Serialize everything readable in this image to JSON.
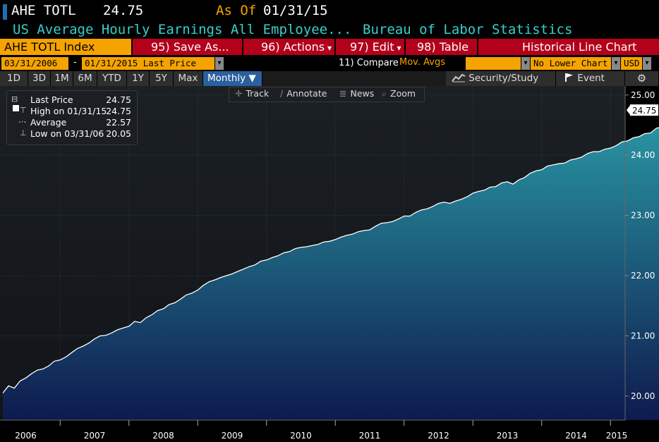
{
  "header": {
    "ticker": "AHE TOTL",
    "price": "24.75",
    "as_of_label": "As Of",
    "as_of_date": "01/31/15",
    "description": "US Average Hourly Earnings All Employee...",
    "source": "Bureau of Labor Statistics"
  },
  "menubar": {
    "index_label": "AHE TOTL Index",
    "save_as": "95) Save As...",
    "actions": "96) Actions",
    "edit": "97) Edit",
    "table": "98) Table",
    "chart_kind": "Historical Line Chart"
  },
  "daterow": {
    "start_date": "03/31/2006",
    "dash": "-",
    "end_date": "01/31/2015 Last Price",
    "compare": "11) Compare",
    "mov_avgs": "Mov. Avgs",
    "lower_chart": "No Lower Chart",
    "currency": "USD"
  },
  "periods": [
    "1D",
    "3D",
    "1M",
    "6M",
    "YTD",
    "1Y",
    "5Y",
    "Max"
  ],
  "frequency": "Monthly",
  "security_study": "Security/Study",
  "event": "Event",
  "tools": {
    "track": "Track",
    "annotate": "Annotate",
    "news": "News",
    "zoom": "Zoom"
  },
  "legend": {
    "last_price_label": "Last Price",
    "last_price_value": "24.75",
    "high_label": "High on 01/31/15",
    "high_value": "24.75",
    "average_label": "Average",
    "average_value": "22.57",
    "low_label": "Low on 03/31/06",
    "low_value": "20.05"
  },
  "colors": {
    "accent_orange": "#f5a300",
    "menu_red": "#b3001b",
    "title_cyan": "#38d0c8",
    "area_top": "#2a9aa6",
    "area_bottom": "#0e1a4e",
    "line": "#ffffff"
  },
  "chart_data": {
    "type": "area",
    "title": "",
    "xlabel": "",
    "ylabel": "",
    "x_start": "2006-03",
    "x_end": "2015-01",
    "ylim": [
      19.6,
      25.15
    ],
    "yticks": [
      "25.00",
      "24.00",
      "23.00",
      "22.00",
      "21.00",
      "20.00"
    ],
    "xticks": [
      "2006",
      "2007",
      "2008",
      "2009",
      "2010",
      "2011",
      "2012",
      "2013",
      "2014",
      "2015"
    ],
    "last_value_label": "24.75",
    "grid": true,
    "series": [
      {
        "values": [
          20.05,
          20.17,
          20.13,
          20.25,
          20.3,
          20.37,
          20.43,
          20.45,
          20.5,
          20.58,
          20.6,
          20.65,
          20.72,
          20.79,
          20.83,
          20.88,
          20.95,
          21.0,
          21.01,
          21.05,
          21.1,
          21.13,
          21.16,
          21.24,
          21.22,
          21.3,
          21.35,
          21.42,
          21.45,
          21.52,
          21.55,
          21.61,
          21.68,
          21.71,
          21.76,
          21.84,
          21.9,
          21.93,
          21.97,
          22.0,
          22.03,
          22.07,
          22.11,
          22.15,
          22.18,
          22.24,
          22.26,
          22.3,
          22.33,
          22.38,
          22.4,
          22.45,
          22.47,
          22.48,
          22.5,
          22.52,
          22.56,
          22.57,
          22.6,
          22.64,
          22.67,
          22.69,
          22.73,
          22.75,
          22.76,
          22.82,
          22.87,
          22.88,
          22.9,
          22.94,
          22.99,
          22.99,
          23.05,
          23.09,
          23.11,
          23.15,
          23.2,
          23.22,
          23.2,
          23.24,
          23.27,
          23.31,
          23.37,
          23.4,
          23.42,
          23.47,
          23.48,
          23.54,
          23.56,
          23.52,
          23.59,
          23.63,
          23.7,
          23.74,
          23.76,
          23.82,
          23.84,
          23.86,
          23.87,
          23.92,
          23.94,
          23.97,
          24.03,
          24.06,
          24.06,
          24.1,
          24.12,
          24.16,
          24.22,
          24.24,
          24.29,
          24.31,
          24.36,
          24.37,
          24.45,
          24.47,
          24.49,
          24.53,
          24.53,
          24.56,
          24.59,
          24.57,
          24.66,
          24.66,
          24.75
        ]
      }
    ]
  }
}
